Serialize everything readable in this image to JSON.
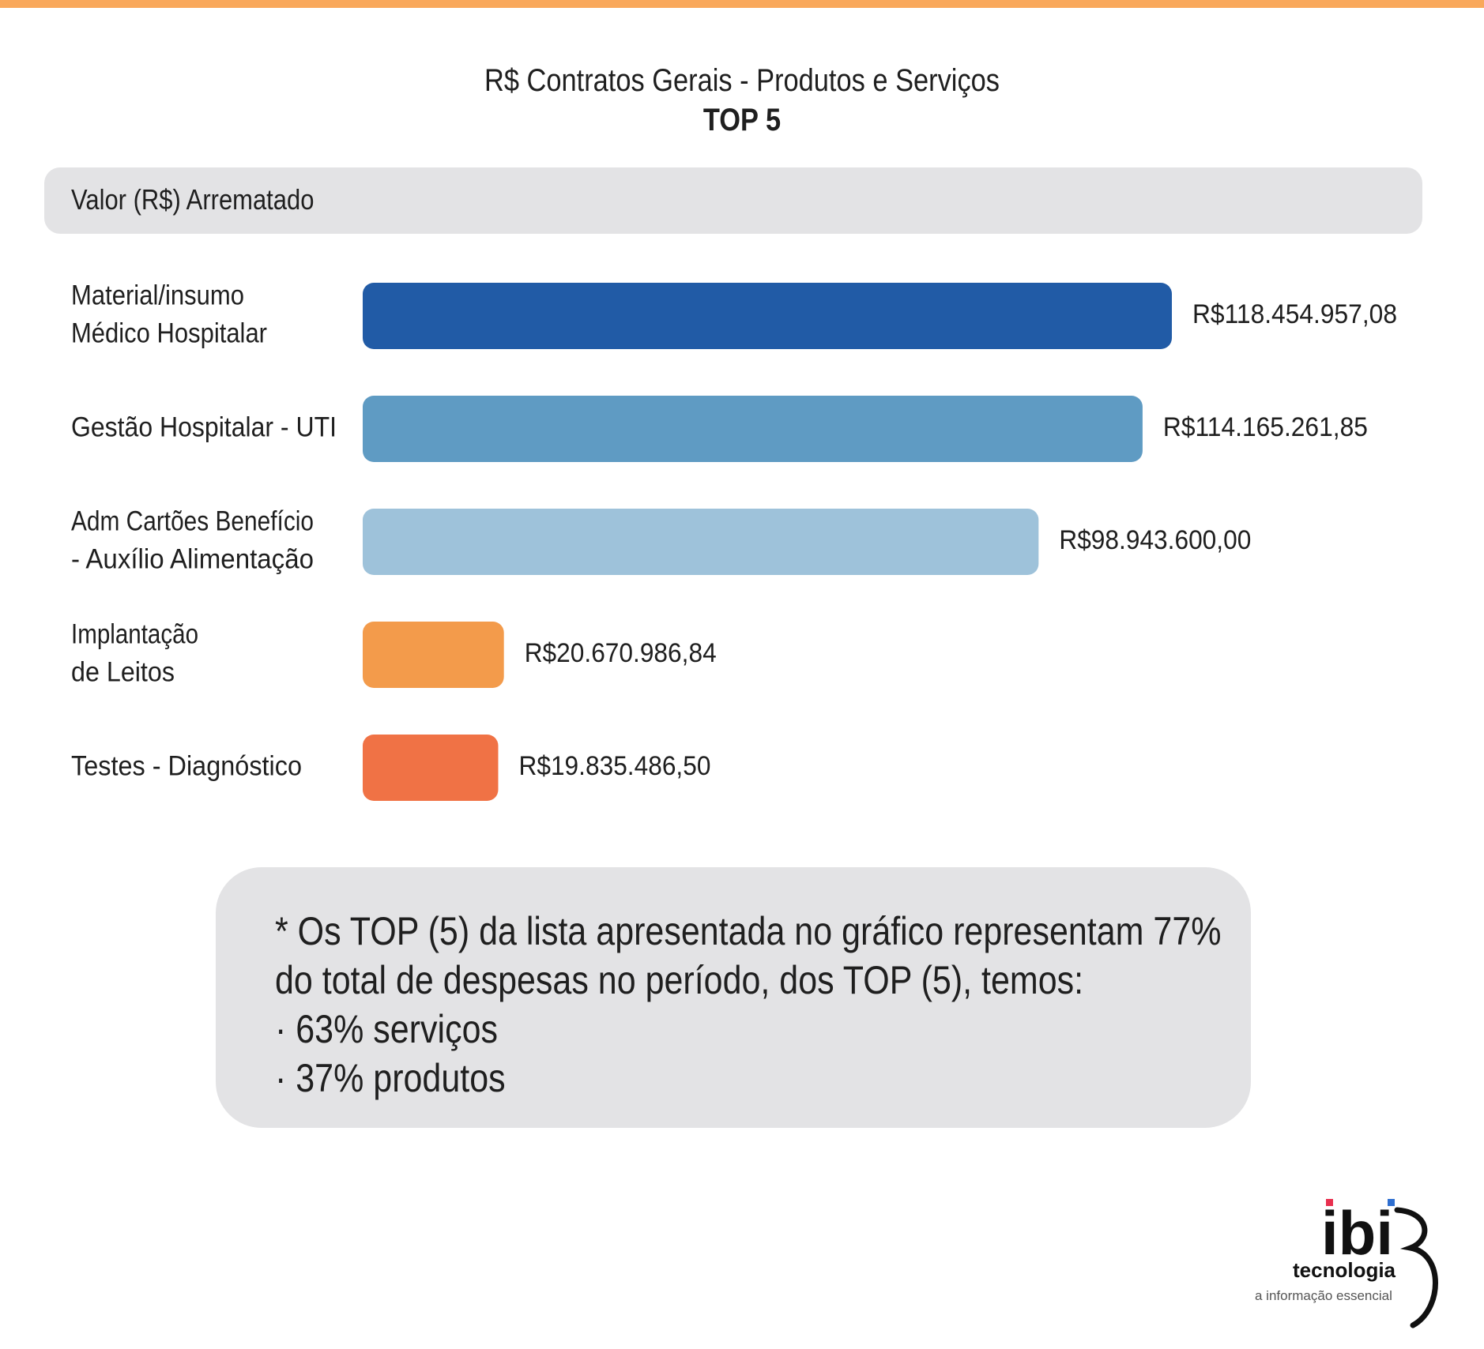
{
  "colors": {
    "top_line": "#f9a85b",
    "panel": "#e3e3e5"
  },
  "chart_data": {
    "type": "bar",
    "orientation": "horizontal",
    "title": "R$ Contratos Gerais - Produtos e Serviços",
    "subtitle": "TOP 5",
    "value_label": "Valor (R$) Arrematado",
    "categories": [
      [
        "Material/insumo",
        "Médico Hospitalar"
      ],
      [
        "Gestão Hospitalar - UTI"
      ],
      [
        "Adm Cartões Benefício",
        "- Auxílio Alimentação"
      ],
      [
        "Implantação",
        "de Leitos"
      ],
      [
        "Testes - Diagnóstico"
      ]
    ],
    "values": [
      118454957.08,
      114165261.85,
      98943600.0,
      20670986.84,
      19835486.5
    ],
    "data_labels": [
      "R$118.454.957,08",
      "R$114.165.261,85",
      "R$98.943.600,00",
      "R$20.670.986,84",
      "R$19.835.486,50"
    ],
    "colors": [
      "#215ba6",
      "#5f9bc3",
      "#9ec2da",
      "#f39b4b",
      "#f07245"
    ],
    "grid": false
  },
  "note": {
    "lines": [
      "* Os TOP (5) da lista apresentada no gráfico representam 77%",
      "do total de despesas no período, dos TOP (5), temos:",
      "· 63% serviços",
      "· 37% produtos"
    ]
  },
  "logo": {
    "mark": "ibi",
    "name": "tecnologia",
    "tagline": "a informação essencial"
  }
}
